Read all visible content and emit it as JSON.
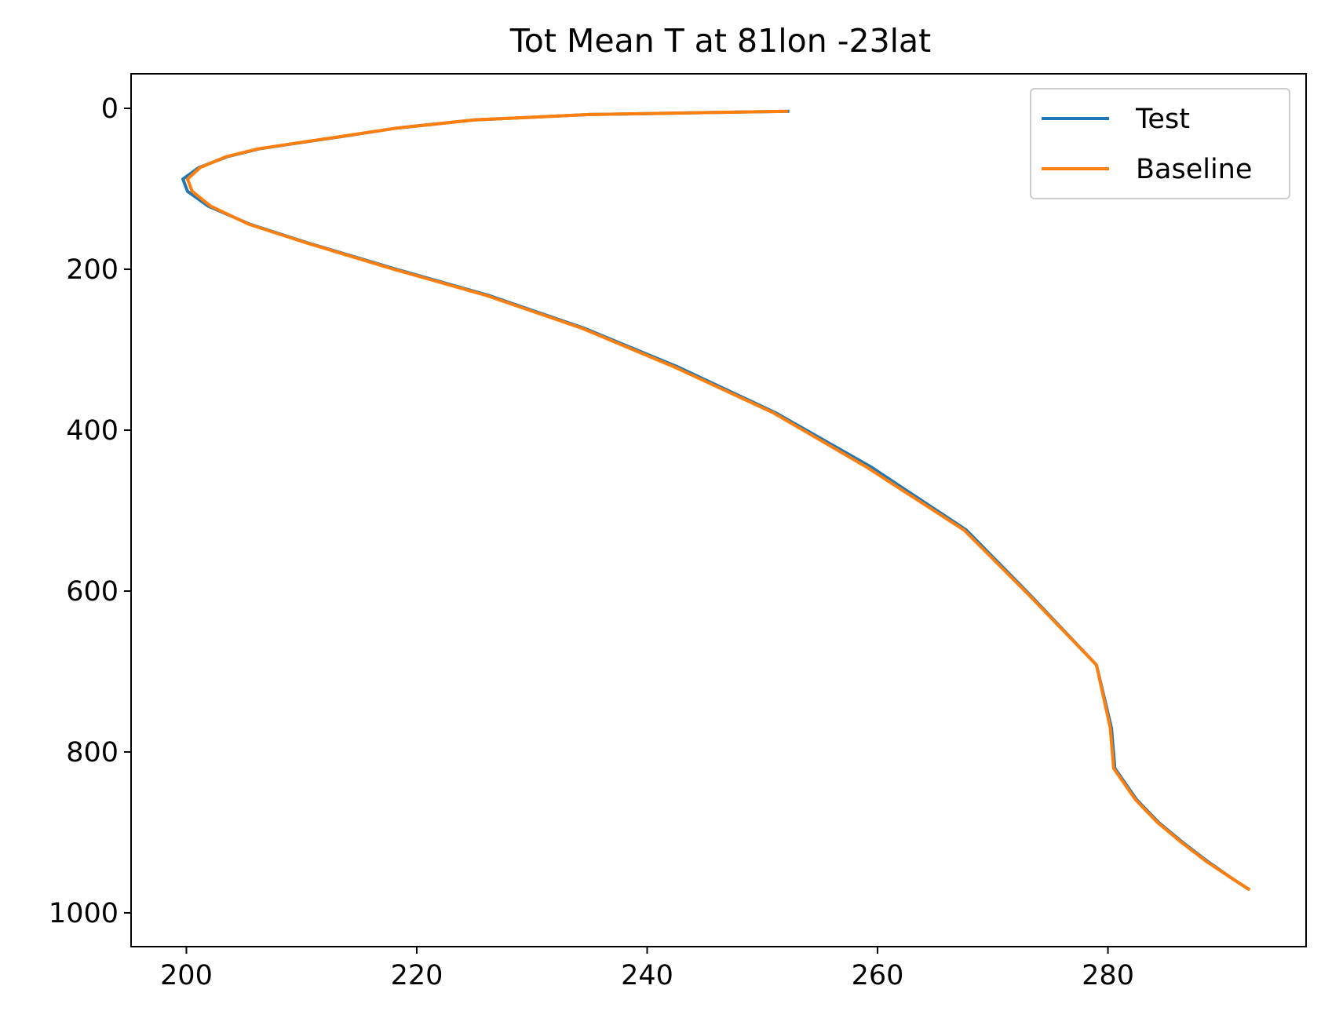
{
  "chart_data": {
    "type": "line",
    "title": "Tot Mean T at 81lon -23lat",
    "xlabel": "",
    "ylabel": "",
    "xlim": [
      195.2,
      297.2
    ],
    "ylim": [
      1042,
      -43
    ],
    "y_inverted": true,
    "xticks": [
      200,
      220,
      240,
      260,
      280
    ],
    "yticks": [
      0,
      200,
      400,
      600,
      800,
      1000
    ],
    "grid": false,
    "legend_position": "top-right",
    "series": [
      {
        "name": "Test",
        "color": "#1f77b4",
        "points": [
          [
            252.2,
            3.6
          ],
          [
            235,
            7.6
          ],
          [
            225,
            14.4
          ],
          [
            218.2,
            24.6
          ],
          [
            213.3,
            35.4
          ],
          [
            209.4,
            43.6
          ],
          [
            206.3,
            50.4
          ],
          [
            203.6,
            59.8
          ],
          [
            201.1,
            73.5
          ],
          [
            199.7,
            87.8
          ],
          [
            200.1,
            103.1
          ],
          [
            201.9,
            121.5
          ],
          [
            205.5,
            143.9
          ],
          [
            210.5,
            167.1
          ],
          [
            218.3,
            200.3
          ],
          [
            226.2,
            232.3
          ],
          [
            234.5,
            273.1
          ],
          [
            242.6,
            321
          ],
          [
            251.1,
            378
          ],
          [
            259.4,
            445.4
          ],
          [
            267.7,
            524.1
          ],
          [
            273.3,
            605.8
          ],
          [
            279,
            691.8
          ],
          [
            280.3,
            770
          ],
          [
            280.6,
            820.5
          ],
          [
            282.5,
            859.5
          ],
          [
            284.4,
            887.6
          ],
          [
            286.5,
            912.6
          ],
          [
            288.7,
            936.6
          ],
          [
            290.8,
            957.5
          ],
          [
            292.2,
            970.4
          ]
        ]
      },
      {
        "name": "Baseline",
        "color": "#ff7f0e",
        "points": [
          [
            252.1,
            3.6
          ],
          [
            235,
            7.6
          ],
          [
            225,
            14.4
          ],
          [
            218.2,
            24.6
          ],
          [
            213.2,
            35.4
          ],
          [
            209.3,
            43.6
          ],
          [
            206.2,
            50.4
          ],
          [
            203.5,
            59.8
          ],
          [
            201.2,
            73.5
          ],
          [
            200.1,
            87.8
          ],
          [
            200.5,
            103.1
          ],
          [
            202.1,
            121.5
          ],
          [
            205.4,
            143.9
          ],
          [
            210.4,
            167.1
          ],
          [
            218.1,
            200.3
          ],
          [
            226,
            232.3
          ],
          [
            234.3,
            273.1
          ],
          [
            242.3,
            321
          ],
          [
            250.9,
            378
          ],
          [
            259,
            445.4
          ],
          [
            267.5,
            524.1
          ],
          [
            273.2,
            605.8
          ],
          [
            279,
            691.8
          ],
          [
            280.2,
            770
          ],
          [
            280.5,
            820.5
          ],
          [
            282.4,
            859.5
          ],
          [
            284.3,
            887.6
          ],
          [
            286.4,
            912.6
          ],
          [
            288.6,
            936.6
          ],
          [
            290.8,
            957.5
          ],
          [
            292.2,
            970.4
          ]
        ]
      }
    ]
  }
}
